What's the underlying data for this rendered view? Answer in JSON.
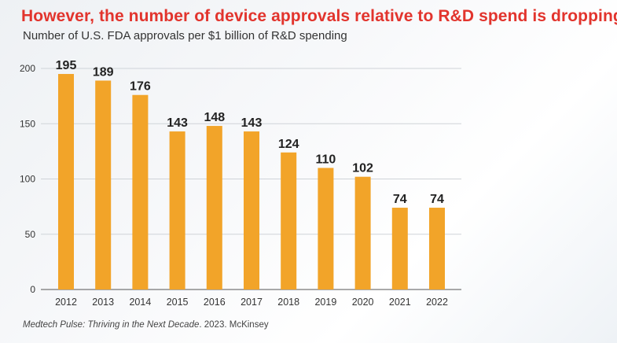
{
  "header": {
    "title": "However, the number of device approvals relative to R&D spend is dropping",
    "subtitle": "Number of U.S. FDA approvals per $1 billion of R&D spending"
  },
  "footer": {
    "source_italic": "Medtech Pulse: Thriving in the Next Decade",
    "source_rest": ". 2023. McKinsey"
  },
  "colors": {
    "title": "#e2342d",
    "bar": "#f2a429"
  },
  "chart_data": {
    "type": "bar",
    "title": "However, the number of device approvals relative to R&D spend is dropping",
    "subtitle": "Number of U.S. FDA approvals per $1 billion of R&D spending",
    "categories": [
      "2012",
      "2013",
      "2014",
      "2015",
      "2016",
      "2017",
      "2018",
      "2019",
      "2020",
      "2021",
      "2022"
    ],
    "values": [
      195,
      189,
      176,
      143,
      148,
      143,
      124,
      110,
      102,
      74,
      74
    ],
    "xlabel": "",
    "ylabel": "",
    "ylim": [
      0,
      200
    ],
    "yticks": [
      0,
      50,
      100,
      150,
      200
    ],
    "grid": true,
    "data_labels": true
  }
}
